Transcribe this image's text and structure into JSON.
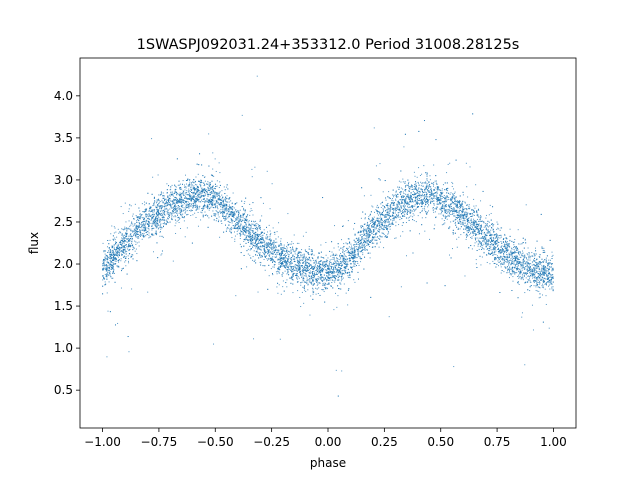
{
  "chart_data": {
    "type": "scatter",
    "title": "1SWASPJ092031.24+353312.0 Period 31008.28125s",
    "xlabel": "phase",
    "ylabel": "flux",
    "xlim": [
      -1.1,
      1.1
    ],
    "ylim": [
      0.05,
      4.45
    ],
    "x_ticks": [
      -1.0,
      -0.75,
      -0.5,
      -0.25,
      0.0,
      0.25,
      0.5,
      0.75,
      1.0
    ],
    "x_tick_labels": [
      "−1.00",
      "−0.75",
      "−0.50",
      "−0.25",
      "0.00",
      "0.25",
      "0.50",
      "0.75",
      "1.00"
    ],
    "y_ticks": [
      0.5,
      1.0,
      1.5,
      2.0,
      2.5,
      3.0,
      3.5,
      4.0
    ],
    "y_tick_labels": [
      "0.5",
      "1.0",
      "1.5",
      "2.0",
      "2.5",
      "3.0",
      "3.5",
      "4.0"
    ],
    "grid": false,
    "marker_color": "#1f77b4",
    "series": [
      {
        "points": [
          [
            -1.0,
            1.9
          ],
          [
            -0.95,
            2.1
          ],
          [
            -0.9,
            2.25
          ],
          [
            -0.85,
            2.4
          ],
          [
            -0.8,
            2.5
          ],
          [
            -0.75,
            2.6
          ],
          [
            -0.7,
            2.7
          ],
          [
            -0.65,
            2.75
          ],
          [
            -0.6,
            2.82
          ],
          [
            -0.55,
            2.82
          ],
          [
            -0.5,
            2.75
          ],
          [
            -0.45,
            2.65
          ],
          [
            -0.4,
            2.5
          ],
          [
            -0.35,
            2.4
          ],
          [
            -0.3,
            2.25
          ],
          [
            -0.25,
            2.15
          ],
          [
            -0.2,
            2.05
          ],
          [
            -0.15,
            2.0
          ],
          [
            -0.1,
            1.95
          ],
          [
            -0.05,
            1.9
          ],
          [
            0.0,
            1.88
          ],
          [
            0.05,
            1.95
          ],
          [
            0.1,
            2.05
          ],
          [
            0.15,
            2.25
          ],
          [
            0.2,
            2.42
          ],
          [
            0.25,
            2.55
          ],
          [
            0.3,
            2.68
          ],
          [
            0.35,
            2.75
          ],
          [
            0.4,
            2.8
          ],
          [
            0.45,
            2.82
          ],
          [
            0.5,
            2.75
          ],
          [
            0.55,
            2.65
          ],
          [
            0.6,
            2.55
          ],
          [
            0.65,
            2.45
          ],
          [
            0.7,
            2.3
          ],
          [
            0.75,
            2.2
          ],
          [
            0.8,
            2.1
          ],
          [
            0.85,
            2.0
          ],
          [
            0.9,
            1.95
          ],
          [
            0.95,
            1.9
          ],
          [
            1.0,
            1.88
          ]
        ]
      }
    ]
  }
}
